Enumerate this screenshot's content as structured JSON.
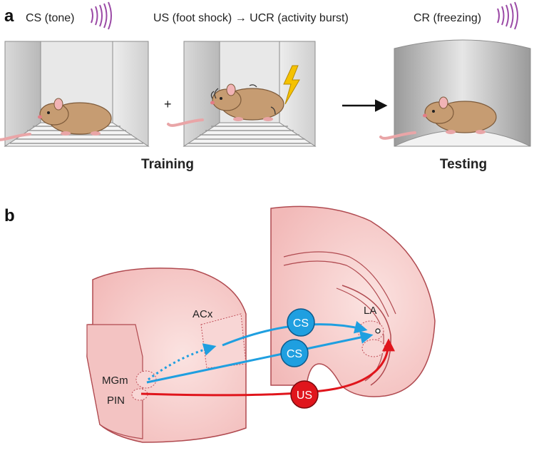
{
  "panel_a": {
    "letter": "a",
    "cs_label": "CS (tone)",
    "us_label": "US (foot shock) → UCR (activity burst)",
    "cr_label": "CR (freezing)",
    "plus": "+",
    "training_label": "Training",
    "testing_label": "Testing",
    "icons": [
      "sound-wave-icon",
      "lightning-bolt-icon",
      "arrow-right-icon",
      "rat-icon"
    ]
  },
  "panel_b": {
    "letter": "b",
    "region_acx": "ACx",
    "region_la": "LA",
    "region_mgm": "MGm",
    "region_pin": "PIN",
    "badge_cs_top": "CS",
    "badge_cs_bottom": "CS",
    "badge_us": "US"
  },
  "colors": {
    "cs_blue": "#1f9fe0",
    "us_red": "#e0151c",
    "tissue_pink": "#f7c9c9",
    "tissue_outline": "#b04a50",
    "sound_purple": "#9b4aa6",
    "bolt_yellow": "#f5c200",
    "rat_brown": "#c69c72"
  }
}
